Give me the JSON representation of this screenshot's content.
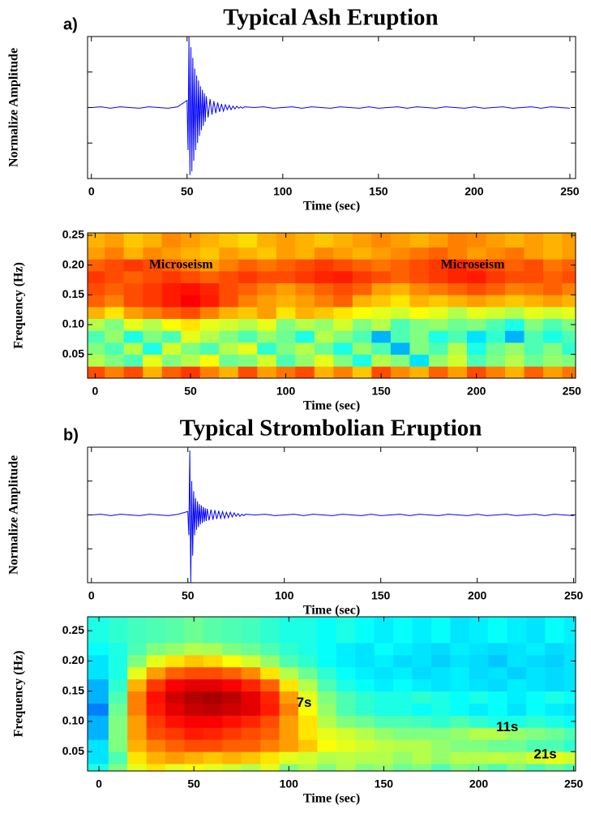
{
  "chart_data": [
    {
      "type": "line",
      "panel_label": "a)",
      "title": "Typical Ash Eruption",
      "xlabel": "Time (sec)",
      "ylabel": "Normalize Amplitude",
      "xlim": [
        -2,
        253
      ],
      "ylim": [
        -1,
        1
      ],
      "xticks": [
        0,
        50,
        100,
        150,
        200,
        250
      ],
      "yticks": [
        -0.5,
        0,
        0.5
      ],
      "series": [
        {
          "color": "#0000ff",
          "x": [
            0,
            5,
            10,
            15,
            20,
            25,
            30,
            35,
            40,
            45,
            50,
            50.5,
            51,
            51.5,
            52,
            52.5,
            53,
            53.5,
            54,
            54.5,
            55,
            55.5,
            56,
            56.5,
            57,
            57.5,
            58,
            58.5,
            59,
            59.5,
            60,
            61,
            62,
            63,
            64,
            65,
            66,
            67,
            68,
            69,
            70,
            71,
            72,
            73,
            74,
            75,
            76,
            77,
            78,
            79,
            80,
            85,
            90,
            95,
            100,
            105,
            110,
            115,
            120,
            125,
            130,
            135,
            140,
            145,
            150,
            155,
            160,
            165,
            170,
            175,
            180,
            185,
            190,
            195,
            200,
            205,
            210,
            215,
            220,
            225,
            230,
            235,
            240,
            245,
            250
          ],
          "values": [
            0,
            0.01,
            -0.01,
            0.01,
            0,
            -0.01,
            0.01,
            0,
            -0.01,
            0.01,
            0.1,
            -0.6,
            1.0,
            -0.95,
            0.85,
            -0.9,
            0.7,
            -0.75,
            0.55,
            -0.6,
            0.45,
            -0.5,
            0.38,
            -0.4,
            0.3,
            -0.32,
            0.25,
            -0.26,
            0.2,
            -0.2,
            0.16,
            -0.14,
            0.12,
            -0.1,
            0.09,
            -0.08,
            0.07,
            -0.06,
            0.05,
            -0.05,
            0.04,
            -0.03,
            0.03,
            -0.03,
            0.02,
            -0.02,
            0.02,
            -0.01,
            0.01,
            -0.01,
            0.01,
            0,
            0.01,
            -0.01,
            0,
            0.01,
            -0.01,
            0.01,
            0,
            -0.01,
            0.01,
            0,
            -0.01,
            0.01,
            -0.01,
            0,
            0.01,
            -0.01,
            0.01,
            0,
            -0.01,
            0.01,
            0,
            -0.01,
            0.01,
            -0.01,
            0,
            0.01,
            -0.01,
            0,
            0.01,
            -0.01,
            0.01,
            0,
            -0.01
          ]
        }
      ]
    },
    {
      "type": "heatmap",
      "xlabel": "Time (sec)",
      "ylabel": "Frequency (Hz)",
      "xlim": [
        -4,
        252
      ],
      "ylim": [
        0.01,
        0.254
      ],
      "xticks": [
        0,
        50,
        100,
        150,
        200,
        250
      ],
      "yticks": [
        0.05,
        {
          "value": 0.1,
          "label": "0.10"
        },
        0.15,
        {
          "value": 0.2,
          "label": "0.20"
        },
        0.25
      ],
      "annotations": [
        {
          "text": "Microseism",
          "x": 45,
          "y": 0.2
        },
        {
          "text": "Microseism",
          "x": 198,
          "y": 0.2
        }
      ],
      "x": [
        0,
        10,
        20,
        30,
        40,
        50,
        60,
        70,
        80,
        90,
        100,
        110,
        120,
        130,
        140,
        150,
        160,
        170,
        180,
        190,
        200,
        210,
        220,
        230,
        240,
        250
      ],
      "y": [
        0.02,
        0.04,
        0.06,
        0.08,
        0.1,
        0.12,
        0.14,
        0.16,
        0.18,
        0.2,
        0.22,
        0.24
      ],
      "z": [
        [
          0.8,
          0.75,
          0.8,
          0.7,
          0.78,
          0.82,
          0.75,
          0.7,
          0.8,
          0.72,
          0.76,
          0.8,
          0.7,
          0.75,
          0.68,
          0.8,
          0.74,
          0.7,
          0.78,
          0.72,
          0.8,
          0.75,
          0.7,
          0.78,
          0.72,
          0.76
        ],
        [
          0.55,
          0.5,
          0.45,
          0.6,
          0.5,
          0.55,
          0.62,
          0.48,
          0.5,
          0.58,
          0.45,
          0.52,
          0.6,
          0.5,
          0.4,
          0.55,
          0.5,
          0.35,
          0.52,
          0.58,
          0.45,
          0.5,
          0.55,
          0.48,
          0.52,
          0.5
        ],
        [
          0.5,
          0.45,
          0.55,
          0.4,
          0.58,
          0.5,
          0.45,
          0.55,
          0.6,
          0.42,
          0.5,
          0.55,
          0.48,
          0.4,
          0.52,
          0.45,
          0.3,
          0.5,
          0.45,
          0.55,
          0.4,
          0.48,
          0.52,
          0.45,
          0.5,
          0.42
        ],
        [
          0.45,
          0.52,
          0.4,
          0.5,
          0.45,
          0.6,
          0.55,
          0.5,
          0.45,
          0.52,
          0.48,
          0.4,
          0.55,
          0.5,
          0.45,
          0.3,
          0.45,
          0.5,
          0.4,
          0.45,
          0.35,
          0.42,
          0.3,
          0.45,
          0.4,
          0.45
        ],
        [
          0.55,
          0.5,
          0.6,
          0.55,
          0.62,
          0.65,
          0.6,
          0.58,
          0.55,
          0.6,
          0.5,
          0.55,
          0.52,
          0.58,
          0.5,
          0.55,
          0.45,
          0.5,
          0.52,
          0.48,
          0.5,
          0.45,
          0.4,
          0.5,
          0.45,
          0.5
        ],
        [
          0.7,
          0.65,
          0.72,
          0.75,
          0.78,
          0.8,
          0.75,
          0.7,
          0.68,
          0.72,
          0.65,
          0.7,
          0.68,
          0.65,
          0.62,
          0.6,
          0.58,
          0.62,
          0.6,
          0.55,
          0.6,
          0.58,
          0.55,
          0.6,
          0.58,
          0.6
        ],
        [
          0.78,
          0.75,
          0.8,
          0.82,
          0.85,
          0.88,
          0.85,
          0.8,
          0.75,
          0.72,
          0.7,
          0.72,
          0.75,
          0.78,
          0.7,
          0.68,
          0.65,
          0.7,
          0.68,
          0.7,
          0.72,
          0.7,
          0.68,
          0.7,
          0.72,
          0.7
        ],
        [
          0.8,
          0.78,
          0.8,
          0.82,
          0.85,
          0.86,
          0.84,
          0.8,
          0.78,
          0.75,
          0.72,
          0.75,
          0.78,
          0.8,
          0.78,
          0.72,
          0.7,
          0.74,
          0.76,
          0.78,
          0.8,
          0.78,
          0.75,
          0.76,
          0.78,
          0.75
        ],
        [
          0.82,
          0.8,
          0.78,
          0.8,
          0.82,
          0.8,
          0.78,
          0.8,
          0.82,
          0.8,
          0.8,
          0.82,
          0.84,
          0.85,
          0.82,
          0.8,
          0.78,
          0.8,
          0.82,
          0.84,
          0.85,
          0.82,
          0.8,
          0.8,
          0.78,
          0.8
        ],
        [
          0.78,
          0.8,
          0.82,
          0.8,
          0.78,
          0.75,
          0.72,
          0.75,
          0.78,
          0.76,
          0.78,
          0.8,
          0.82,
          0.8,
          0.78,
          0.76,
          0.78,
          0.8,
          0.82,
          0.84,
          0.82,
          0.8,
          0.78,
          0.8,
          0.76,
          0.78
        ],
        [
          0.72,
          0.75,
          0.7,
          0.74,
          0.72,
          0.7,
          0.68,
          0.72,
          0.7,
          0.68,
          0.72,
          0.7,
          0.74,
          0.72,
          0.7,
          0.72,
          0.74,
          0.76,
          0.78,
          0.75,
          0.72,
          0.74,
          0.76,
          0.72,
          0.7,
          0.72
        ],
        [
          0.7,
          0.72,
          0.68,
          0.7,
          0.74,
          0.72,
          0.7,
          0.68,
          0.66,
          0.7,
          0.72,
          0.7,
          0.68,
          0.7,
          0.72,
          0.74,
          0.72,
          0.7,
          0.72,
          0.75,
          0.74,
          0.72,
          0.7,
          0.72,
          0.7,
          0.72
        ]
      ]
    },
    {
      "type": "line",
      "panel_label": "b)",
      "title": "Typical Strombolian Eruption",
      "xlabel": "Time (sec)",
      "ylabel": "Normalize Amplitude",
      "xlim": [
        -2,
        251
      ],
      "ylim": [
        -1,
        1
      ],
      "xticks": [
        0,
        50,
        100,
        150,
        200,
        250
      ],
      "yticks": [
        -0.5,
        0,
        0.5
      ],
      "series": [
        {
          "color": "#0000ff",
          "x": [
            0,
            5,
            10,
            15,
            20,
            25,
            30,
            35,
            40,
            45,
            50,
            50.5,
            51,
            51.5,
            52,
            52.5,
            53,
            53.5,
            54,
            54.5,
            55,
            55.5,
            56,
            56.5,
            57,
            57.5,
            58,
            58.5,
            59,
            59.5,
            60,
            61,
            62,
            63,
            64,
            65,
            66,
            67,
            68,
            69,
            70,
            71,
            72,
            73,
            74,
            75,
            76,
            77,
            78,
            79,
            80,
            85,
            90,
            95,
            100,
            105,
            110,
            115,
            120,
            125,
            130,
            135,
            140,
            145,
            150,
            155,
            160,
            165,
            170,
            175,
            180,
            185,
            190,
            195,
            200,
            205,
            210,
            215,
            220,
            225,
            230,
            235,
            240,
            245,
            250
          ],
          "values": [
            0,
            0.01,
            -0.01,
            0.01,
            0,
            -0.01,
            0.01,
            0,
            -0.01,
            0.01,
            0.05,
            -0.3,
            0.95,
            -1.0,
            0.5,
            -0.6,
            0.35,
            -0.3,
            0.25,
            -0.22,
            0.2,
            -0.18,
            0.16,
            -0.14,
            0.14,
            -0.12,
            0.12,
            -0.1,
            0.1,
            -0.09,
            0.09,
            -0.08,
            0.08,
            -0.07,
            0.07,
            -0.06,
            0.06,
            -0.05,
            0.05,
            -0.05,
            0.04,
            -0.04,
            0.04,
            -0.03,
            0.03,
            -0.02,
            0.02,
            -0.02,
            0.01,
            -0.01,
            0.01,
            0,
            0.01,
            -0.01,
            0,
            0.01,
            -0.01,
            0.01,
            0,
            -0.01,
            0.01,
            0,
            -0.01,
            0.01,
            -0.01,
            0,
            0.01,
            -0.01,
            0.01,
            0,
            -0.01,
            0.01,
            0,
            -0.01,
            0.01,
            -0.01,
            0,
            0.01,
            -0.01,
            0,
            0.01,
            -0.01,
            0.01,
            0,
            -0.01
          ]
        }
      ]
    },
    {
      "type": "heatmap",
      "xlabel": "Time (sec)",
      "ylabel": "Frequency (Hz)",
      "xlim": [
        -6,
        251
      ],
      "ylim": [
        0.018,
        0.273
      ],
      "xticks": [
        0,
        50,
        100,
        150,
        200,
        250
      ],
      "yticks": [
        0.05,
        {
          "value": 0.1,
          "label": "0.10"
        },
        0.15,
        {
          "value": 0.2,
          "label": "0.20"
        },
        0.25
      ],
      "annotations": [
        {
          "text": "7s",
          "x": 108,
          "y": 0.13
        },
        {
          "text": "11s",
          "x": 215,
          "y": 0.09
        },
        {
          "text": "21s",
          "x": 235,
          "y": 0.045
        }
      ],
      "x": [
        0,
        10,
        20,
        30,
        40,
        50,
        60,
        70,
        80,
        90,
        100,
        110,
        120,
        130,
        140,
        150,
        160,
        170,
        180,
        190,
        200,
        210,
        220,
        230,
        240,
        250
      ],
      "y": [
        0.02,
        0.04,
        0.06,
        0.08,
        0.1,
        0.12,
        0.14,
        0.16,
        0.18,
        0.2,
        0.22,
        0.24
      ],
      "z": [
        [
          0.4,
          0.5,
          0.6,
          0.65,
          0.6,
          0.62,
          0.6,
          0.58,
          0.55,
          0.6,
          0.5,
          0.55,
          0.5,
          0.55,
          0.5,
          0.52,
          0.48,
          0.5,
          0.45,
          0.5,
          0.48,
          0.45,
          0.5,
          0.45,
          0.48,
          0.45
        ],
        [
          0.35,
          0.45,
          0.65,
          0.7,
          0.72,
          0.7,
          0.68,
          0.7,
          0.68,
          0.65,
          0.6,
          0.58,
          0.55,
          0.56,
          0.55,
          0.55,
          0.52,
          0.55,
          0.52,
          0.55,
          0.55,
          0.56,
          0.55,
          0.58,
          0.6,
          0.58
        ],
        [
          0.35,
          0.5,
          0.7,
          0.75,
          0.78,
          0.8,
          0.8,
          0.78,
          0.78,
          0.75,
          0.72,
          0.68,
          0.62,
          0.6,
          0.58,
          0.56,
          0.55,
          0.55,
          0.52,
          0.5,
          0.5,
          0.48,
          0.48,
          0.45,
          0.45,
          0.42
        ],
        [
          0.3,
          0.5,
          0.72,
          0.8,
          0.82,
          0.85,
          0.84,
          0.82,
          0.8,
          0.78,
          0.72,
          0.65,
          0.6,
          0.58,
          0.55,
          0.52,
          0.5,
          0.5,
          0.5,
          0.52,
          0.55,
          0.55,
          0.52,
          0.5,
          0.48,
          0.45
        ],
        [
          0.3,
          0.5,
          0.72,
          0.82,
          0.86,
          0.88,
          0.88,
          0.86,
          0.84,
          0.8,
          0.72,
          0.65,
          0.55,
          0.5,
          0.48,
          0.45,
          0.45,
          0.44,
          0.42,
          0.45,
          0.42,
          0.4,
          0.4,
          0.42,
          0.4,
          0.38
        ],
        [
          0.25,
          0.48,
          0.75,
          0.85,
          0.9,
          0.93,
          0.94,
          0.92,
          0.9,
          0.85,
          0.75,
          0.62,
          0.52,
          0.45,
          0.42,
          0.4,
          0.4,
          0.38,
          0.4,
          0.38,
          0.36,
          0.38,
          0.35,
          0.38,
          0.36,
          0.35
        ],
        [
          0.3,
          0.45,
          0.75,
          0.86,
          0.92,
          0.95,
          0.96,
          0.94,
          0.9,
          0.84,
          0.72,
          0.6,
          0.5,
          0.45,
          0.42,
          0.4,
          0.4,
          0.42,
          0.4,
          0.38,
          0.4,
          0.38,
          0.36,
          0.38,
          0.4,
          0.38
        ],
        [
          0.3,
          0.42,
          0.7,
          0.82,
          0.88,
          0.9,
          0.9,
          0.88,
          0.84,
          0.78,
          0.65,
          0.55,
          0.45,
          0.4,
          0.38,
          0.36,
          0.38,
          0.36,
          0.35,
          0.36,
          0.35,
          0.34,
          0.36,
          0.35,
          0.34,
          0.35
        ],
        [
          0.35,
          0.4,
          0.6,
          0.72,
          0.78,
          0.8,
          0.8,
          0.78,
          0.74,
          0.65,
          0.55,
          0.48,
          0.42,
          0.38,
          0.36,
          0.35,
          0.36,
          0.34,
          0.35,
          0.36,
          0.34,
          0.35,
          0.33,
          0.35,
          0.34,
          0.35
        ],
        [
          0.35,
          0.4,
          0.5,
          0.6,
          0.65,
          0.68,
          0.66,
          0.62,
          0.58,
          0.52,
          0.45,
          0.42,
          0.38,
          0.36,
          0.35,
          0.36,
          0.34,
          0.35,
          0.33,
          0.35,
          0.34,
          0.32,
          0.35,
          0.34,
          0.33,
          0.35
        ],
        [
          0.38,
          0.4,
          0.45,
          0.5,
          0.52,
          0.55,
          0.54,
          0.5,
          0.48,
          0.45,
          0.42,
          0.4,
          0.38,
          0.36,
          0.35,
          0.38,
          0.36,
          0.35,
          0.34,
          0.36,
          0.35,
          0.34,
          0.35,
          0.36,
          0.34,
          0.35
        ],
        [
          0.4,
          0.42,
          0.44,
          0.45,
          0.46,
          0.48,
          0.46,
          0.45,
          0.44,
          0.42,
          0.4,
          0.4,
          0.38,
          0.4,
          0.38,
          0.36,
          0.38,
          0.36,
          0.38,
          0.35,
          0.36,
          0.38,
          0.36,
          0.35,
          0.38,
          0.36
        ]
      ]
    }
  ]
}
